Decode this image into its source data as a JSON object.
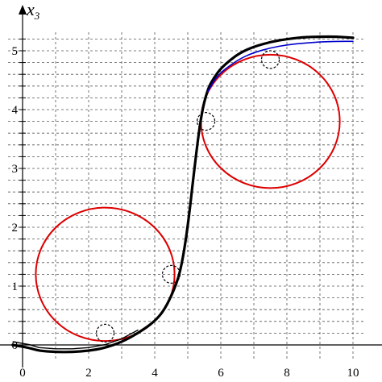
{
  "chart_data": {
    "type": "line",
    "title": "",
    "ylabel": {
      "base": "x",
      "sub": "3"
    },
    "xlabel": "",
    "xlim": [
      -0.3,
      10.2
    ],
    "ylim": [
      -0.15,
      5.3
    ],
    "grid": true,
    "x_tick_labels": [
      "0",
      "2",
      "4",
      "6",
      "8",
      "10"
    ],
    "x_ticks": [
      0,
      2,
      4,
      6,
      8,
      10
    ],
    "y_tick_labels": [
      "0",
      "1",
      "2",
      "3",
      "4",
      "5"
    ],
    "y_ticks_every": 0.2,
    "y_tick_label_values": [
      0,
      1,
      2,
      3,
      4,
      5
    ],
    "grid_vertical_every": 1,
    "series": [
      {
        "color": "#000000",
        "width": 3.2,
        "x": [
          -0.3,
          0.2,
          0.5,
          1.0,
          1.5,
          2.0,
          2.5,
          3.0,
          3.5,
          4.0,
          4.3,
          4.6,
          4.8,
          5.0,
          5.2,
          5.4,
          5.6,
          5.8,
          6.0,
          6.3,
          6.6,
          7.0,
          7.5,
          8.0,
          8.5,
          9.0,
          9.5,
          10.0
        ],
        "y": [
          0.0,
          -0.05,
          -0.1,
          -0.12,
          -0.12,
          -0.1,
          -0.05,
          0.05,
          0.2,
          0.4,
          0.6,
          0.95,
          1.3,
          2.0,
          3.0,
          3.9,
          4.35,
          4.55,
          4.7,
          4.85,
          4.97,
          5.07,
          5.15,
          5.2,
          5.23,
          5.24,
          5.24,
          5.22
        ]
      },
      {
        "color": "#0000cc",
        "width": 1.6,
        "x": [
          5.6,
          5.8,
          6.0,
          6.3,
          6.6,
          7.0,
          7.5,
          8.0,
          8.5,
          9.0,
          9.5,
          10.0
        ],
        "y": [
          4.3,
          4.5,
          4.63,
          4.76,
          4.87,
          4.97,
          5.05,
          5.1,
          5.13,
          5.15,
          5.16,
          5.16
        ]
      }
    ],
    "circles": [
      {
        "color": "#dd0000",
        "cx": 2.5,
        "cy": 1.2,
        "r": 2.1
      },
      {
        "color": "#dd0000",
        "cx": 7.5,
        "cy": 3.8,
        "r": 2.1
      }
    ],
    "markers": [
      {
        "x": 2.5,
        "y": 0.2
      },
      {
        "x": 4.5,
        "y": 1.2
      },
      {
        "x": 5.55,
        "y": 3.8
      },
      {
        "x": 7.5,
        "y": 4.85
      }
    ]
  }
}
